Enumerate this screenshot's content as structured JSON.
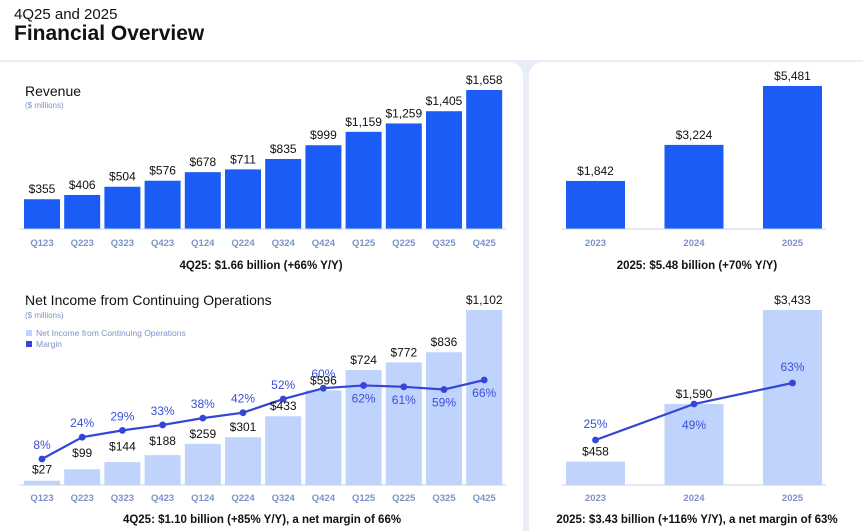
{
  "header": {
    "subtitle": "4Q25 and 2025",
    "title": "Financial Overview"
  },
  "colors": {
    "revenue_bar": "#1a5cf5",
    "income_bar": "#bfd3fd",
    "margin_line": "#3346d6",
    "margin_label": "#3a4fd8",
    "axis_label": "#7d93c8"
  },
  "chart_data": [
    {
      "id": "quarterly-revenue",
      "type": "bar",
      "title": "Revenue",
      "unit_label": "($ millions)",
      "categories": [
        "Q123",
        "Q223",
        "Q323",
        "Q423",
        "Q124",
        "Q224",
        "Q324",
        "Q424",
        "Q125",
        "Q225",
        "Q325",
        "Q425"
      ],
      "values": [
        355,
        406,
        504,
        576,
        678,
        711,
        835,
        999,
        1159,
        1259,
        1405,
        1658
      ],
      "value_labels": [
        "$355",
        "$406",
        "$504",
        "$576",
        "$678",
        "$711",
        "$835",
        "$999",
        "$1,159",
        "$1,259",
        "$1,405",
        "$1,658"
      ],
      "ylim": [
        0,
        1658
      ],
      "caption": "4Q25: $1.66 billion (+66% Y/Y)"
    },
    {
      "id": "annual-revenue",
      "type": "bar",
      "categories": [
        "2023",
        "2024",
        "2025"
      ],
      "values": [
        1842,
        3224,
        5481
      ],
      "value_labels": [
        "$1,842",
        "$3,224",
        "$5,481"
      ],
      "ylim": [
        0,
        5481
      ],
      "caption": "2025: $5.48 billion (+70% Y/Y)"
    },
    {
      "id": "quarterly-net-income",
      "type": "bar",
      "title": "Net Income from Continuing Operations",
      "unit_label": "($ millions)",
      "legend": [
        "Net Income from Continuing Operations",
        "Margin"
      ],
      "categories": [
        "Q123",
        "Q223",
        "Q323",
        "Q423",
        "Q124",
        "Q224",
        "Q324",
        "Q424",
        "Q125",
        "Q225",
        "Q325",
        "Q425"
      ],
      "series": [
        {
          "name": "Net Income from Continuing Operations",
          "values": [
            27,
            99,
            144,
            188,
            259,
            301,
            433,
            596,
            724,
            772,
            836,
            1102
          ],
          "value_labels": [
            "$27",
            "$99",
            "$144",
            "$188",
            "$259",
            "$301",
            "$433",
            "$596",
            "$724",
            "$772",
            "$836",
            "$1,102"
          ]
        },
        {
          "name": "Margin",
          "type": "line",
          "values": [
            8,
            24,
            29,
            33,
            38,
            42,
            52,
            60,
            62,
            61,
            59,
            66
          ],
          "value_labels": [
            "8%",
            "24%",
            "29%",
            "33%",
            "38%",
            "42%",
            "52%",
            "60%",
            "62%",
            "61%",
            "59%",
            "66%"
          ]
        }
      ],
      "ylim": [
        0,
        1102
      ],
      "margin_ylim": [
        0,
        100
      ],
      "caption": "4Q25: $1.10 billion (+85% Y/Y), a net margin of 66%"
    },
    {
      "id": "annual-net-income",
      "type": "bar",
      "categories": [
        "2023",
        "2024",
        "2025"
      ],
      "series": [
        {
          "name": "Net Income from Continuing Operations",
          "values": [
            458,
            1590,
            3433
          ],
          "value_labels": [
            "$458",
            "$1,590",
            "$3,433"
          ]
        },
        {
          "name": "Margin",
          "type": "line",
          "values": [
            25,
            49,
            63
          ],
          "value_labels": [
            "25%",
            "49%",
            "63%"
          ]
        }
      ],
      "ylim": [
        0,
        3433
      ],
      "caption": "2025:  $3.43 billion (+116% Y/Y), a net margin of 63%"
    }
  ]
}
